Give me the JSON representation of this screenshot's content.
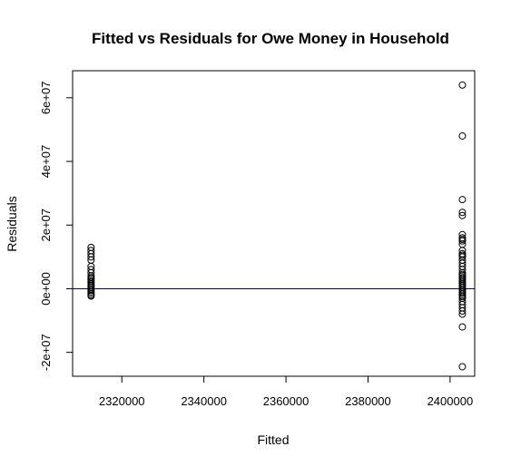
{
  "chart_data": {
    "type": "scatter",
    "title": "Fitted vs Residuals for Owe Money in Household",
    "xlabel": "Fitted",
    "ylabel": "Residuals",
    "xlim": [
      2308000,
      2406000
    ],
    "ylim": [
      -27500000,
      68500000
    ],
    "x_ticks": [
      2320000,
      2340000,
      2360000,
      2380000,
      2400000
    ],
    "x_tick_labels": [
      "2320000",
      "2340000",
      "2360000",
      "2380000",
      "2400000"
    ],
    "y_ticks": [
      -20000000,
      0,
      20000000,
      40000000,
      60000000
    ],
    "y_tick_labels": [
      "-2e+07",
      "0e+00",
      "2e+07",
      "4e+07",
      "6e+07"
    ],
    "reference_line": {
      "y": 0,
      "color": "#000080"
    },
    "grid": false,
    "legend": "none",
    "series": [
      {
        "marker": "open-circle",
        "points": [
          [
            2312500,
            13000000
          ],
          [
            2312500,
            12000000
          ],
          [
            2312500,
            11000000
          ],
          [
            2312500,
            10000000
          ],
          [
            2312500,
            9000000
          ],
          [
            2312500,
            7000000
          ],
          [
            2312500,
            6000000
          ],
          [
            2312500,
            5000000
          ],
          [
            2312500,
            4000000
          ],
          [
            2312500,
            3500000
          ],
          [
            2312500,
            3000000
          ],
          [
            2312500,
            2500000
          ],
          [
            2312500,
            2000000
          ],
          [
            2312500,
            1500000
          ],
          [
            2312500,
            1000000
          ],
          [
            2312500,
            500000
          ],
          [
            2312500,
            0
          ],
          [
            2312500,
            -500000
          ],
          [
            2312500,
            -1000000
          ],
          [
            2312500,
            -1500000
          ],
          [
            2312500,
            -2000000
          ],
          [
            2312500,
            -2300000
          ],
          [
            2403000,
            64000000
          ],
          [
            2403000,
            48000000
          ],
          [
            2403000,
            28000000
          ],
          [
            2403000,
            24000000
          ],
          [
            2403000,
            23000000
          ],
          [
            2403000,
            17000000
          ],
          [
            2403000,
            16000000
          ],
          [
            2403000,
            15500000
          ],
          [
            2403000,
            15000000
          ],
          [
            2403000,
            14000000
          ],
          [
            2403000,
            12000000
          ],
          [
            2403000,
            11000000
          ],
          [
            2403000,
            10500000
          ],
          [
            2403000,
            10000000
          ],
          [
            2403000,
            9000000
          ],
          [
            2403000,
            8000000
          ],
          [
            2403000,
            7000000
          ],
          [
            2403000,
            6000000
          ],
          [
            2403000,
            5000000
          ],
          [
            2403000,
            4500000
          ],
          [
            2403000,
            4000000
          ],
          [
            2403000,
            3500000
          ],
          [
            2403000,
            3000000
          ],
          [
            2403000,
            2500000
          ],
          [
            2403000,
            2000000
          ],
          [
            2403000,
            1500000
          ],
          [
            2403000,
            1000000
          ],
          [
            2403000,
            500000
          ],
          [
            2403000,
            0
          ],
          [
            2403000,
            -500000
          ],
          [
            2403000,
            -1000000
          ],
          [
            2403000,
            -1500000
          ],
          [
            2403000,
            -2000000
          ],
          [
            2403000,
            -2500000
          ],
          [
            2403000,
            -3000000
          ],
          [
            2403000,
            -4000000
          ],
          [
            2403000,
            -5000000
          ],
          [
            2403000,
            -6000000
          ],
          [
            2403000,
            -7000000
          ],
          [
            2403000,
            -8000000
          ],
          [
            2403000,
            -12000000
          ],
          [
            2403000,
            -24500000
          ]
        ]
      }
    ]
  }
}
